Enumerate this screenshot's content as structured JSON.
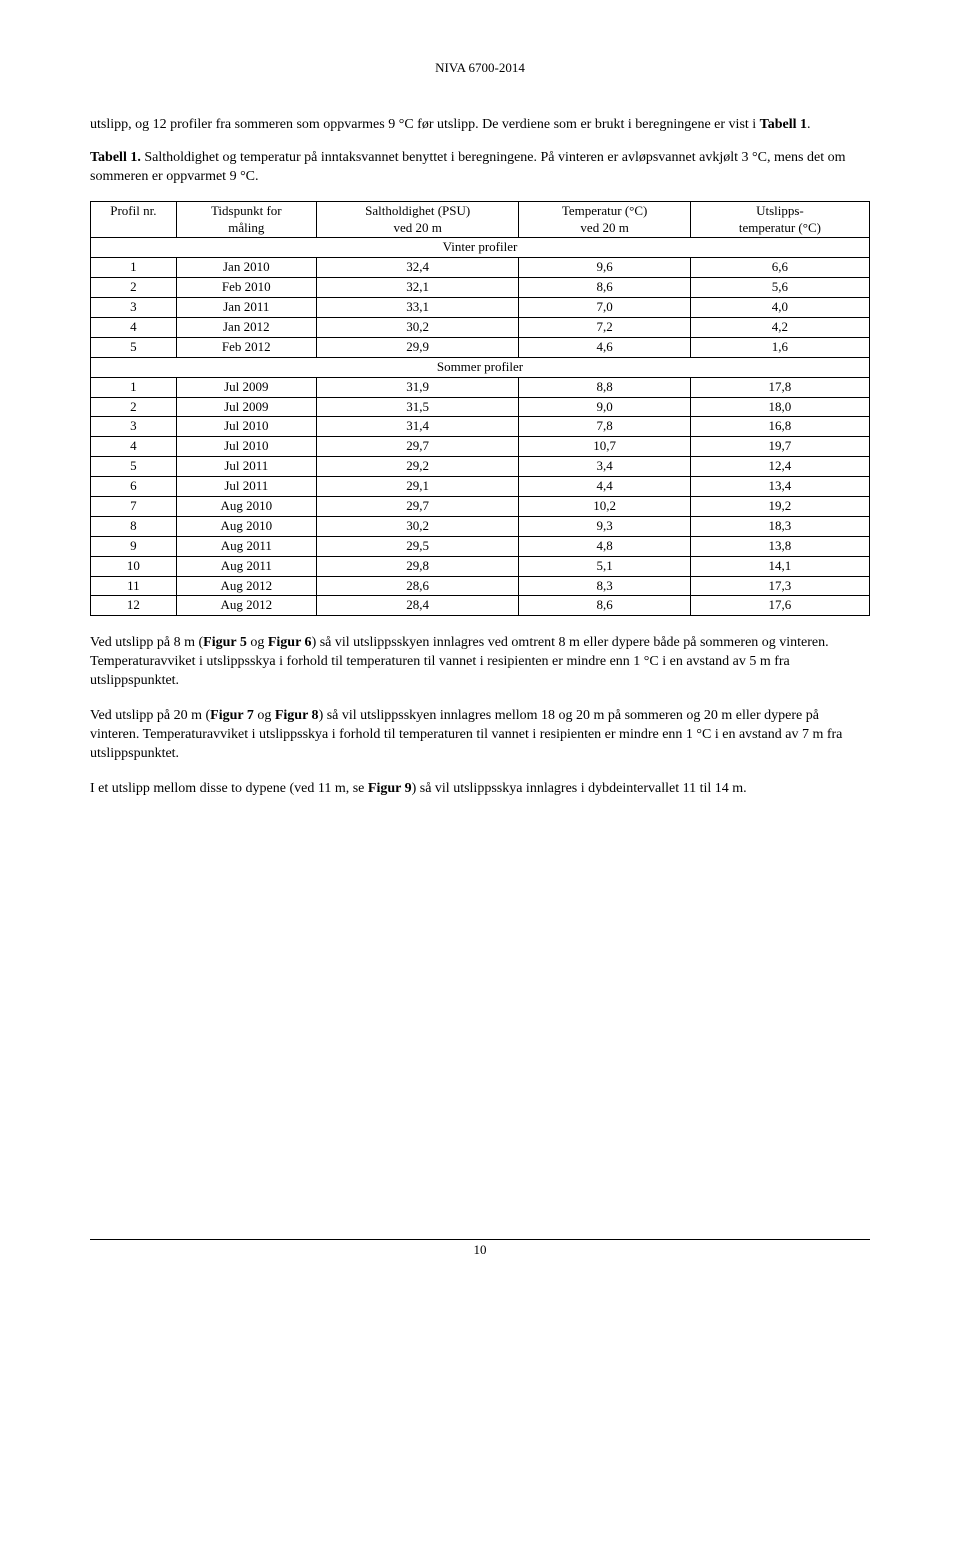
{
  "header": {
    "doc_id": "NIVA 6700-2014"
  },
  "intro": {
    "p1_a": "utslipp, og 12 profiler fra sommeren som oppvarmes 9 °C før utslipp. De verdiene som er brukt i beregningene er vist i ",
    "p1_b": "Tabell 1",
    "p1_c": "."
  },
  "caption": {
    "a": "Tabell 1.",
    "b": " Saltholdighet og temperatur på inntaksvannet benyttet i beregningene. På vinteren er avløpsvannet avkjølt 3 °C, mens det om sommeren er oppvarmet 9 °C."
  },
  "table": {
    "headers": {
      "c1a": "Profil nr.",
      "c1b": "",
      "c2a": "Tidspunkt for",
      "c2b": "måling",
      "c3a": "Saltholdighet (PSU)",
      "c3b": "ved 20 m",
      "c4a": "Temperatur (°C)",
      "c4b": "ved 20 m",
      "c5a": "Utslipps-",
      "c5b": "temperatur (°C)"
    },
    "section1": "Vinter profiler",
    "winter_rows": [
      {
        "nr": "1",
        "tid": "Jan 2010",
        "salt": "32,4",
        "temp": "9,6",
        "ut": "6,6"
      },
      {
        "nr": "2",
        "tid": "Feb 2010",
        "salt": "32,1",
        "temp": "8,6",
        "ut": "5,6"
      },
      {
        "nr": "3",
        "tid": "Jan 2011",
        "salt": "33,1",
        "temp": "7,0",
        "ut": "4,0"
      },
      {
        "nr": "4",
        "tid": "Jan 2012",
        "salt": "30,2",
        "temp": "7,2",
        "ut": "4,2"
      },
      {
        "nr": "5",
        "tid": "Feb 2012",
        "salt": "29,9",
        "temp": "4,6",
        "ut": "1,6"
      }
    ],
    "section2": "Sommer profiler",
    "summer_rows": [
      {
        "nr": "1",
        "tid": "Jul 2009",
        "salt": "31,9",
        "temp": "8,8",
        "ut": "17,8"
      },
      {
        "nr": "2",
        "tid": "Jul 2009",
        "salt": "31,5",
        "temp": "9,0",
        "ut": "18,0"
      },
      {
        "nr": "3",
        "tid": "Jul 2010",
        "salt": "31,4",
        "temp": "7,8",
        "ut": "16,8"
      },
      {
        "nr": "4",
        "tid": "Jul 2010",
        "salt": "29,7",
        "temp": "10,7",
        "ut": "19,7"
      },
      {
        "nr": "5",
        "tid": "Jul 2011",
        "salt": "29,2",
        "temp": "3,4",
        "ut": "12,4"
      },
      {
        "nr": "6",
        "tid": "Jul 2011",
        "salt": "29,1",
        "temp": "4,4",
        "ut": "13,4"
      },
      {
        "nr": "7",
        "tid": "Aug 2010",
        "salt": "29,7",
        "temp": "10,2",
        "ut": "19,2"
      },
      {
        "nr": "8",
        "tid": "Aug 2010",
        "salt": "30,2",
        "temp": "9,3",
        "ut": "18,3"
      },
      {
        "nr": "9",
        "tid": "Aug 2011",
        "salt": "29,5",
        "temp": "4,8",
        "ut": "13,8"
      },
      {
        "nr": "10",
        "tid": "Aug 2011",
        "salt": "29,8",
        "temp": "5,1",
        "ut": "14,1"
      },
      {
        "nr": "11",
        "tid": "Aug 2012",
        "salt": "28,6",
        "temp": "8,3",
        "ut": "17,3"
      },
      {
        "nr": "12",
        "tid": "Aug 2012",
        "salt": "28,4",
        "temp": "8,6",
        "ut": "17,6"
      }
    ]
  },
  "paras": {
    "p1": {
      "a": "Ved utslipp på 8 m (",
      "b": "Figur 5",
      "c": " og ",
      "d": "Figur 6",
      "e": ") så vil utslippsskyen innlagres ved omtrent 8 m eller dypere både på sommeren og vinteren. Temperaturavviket i utslippsskya i forhold til temperaturen til vannet i resipienten er mindre enn 1 °C i en avstand av 5 m fra utslippspunktet."
    },
    "p2": {
      "a": "Ved utslipp på 20 m (",
      "b": "Figur 7",
      "c": " og ",
      "d": "Figur 8",
      "e": ") så vil utslippsskyen innlagres mellom 18 og 20 m på sommeren og 20 m eller dypere på vinteren. Temperaturavviket i utslippsskya i forhold til temperaturen til vannet i resipienten er mindre enn 1 °C i en avstand av 7 m fra utslippspunktet."
    },
    "p3": {
      "a": "I et utslipp mellom disse to dypene (ved 11 m, se ",
      "b": "Figur 9",
      "c": ") så vil utslippsskya innlagres i dybdeintervallet 11 til 14 m."
    }
  },
  "footer": {
    "page": "10"
  }
}
